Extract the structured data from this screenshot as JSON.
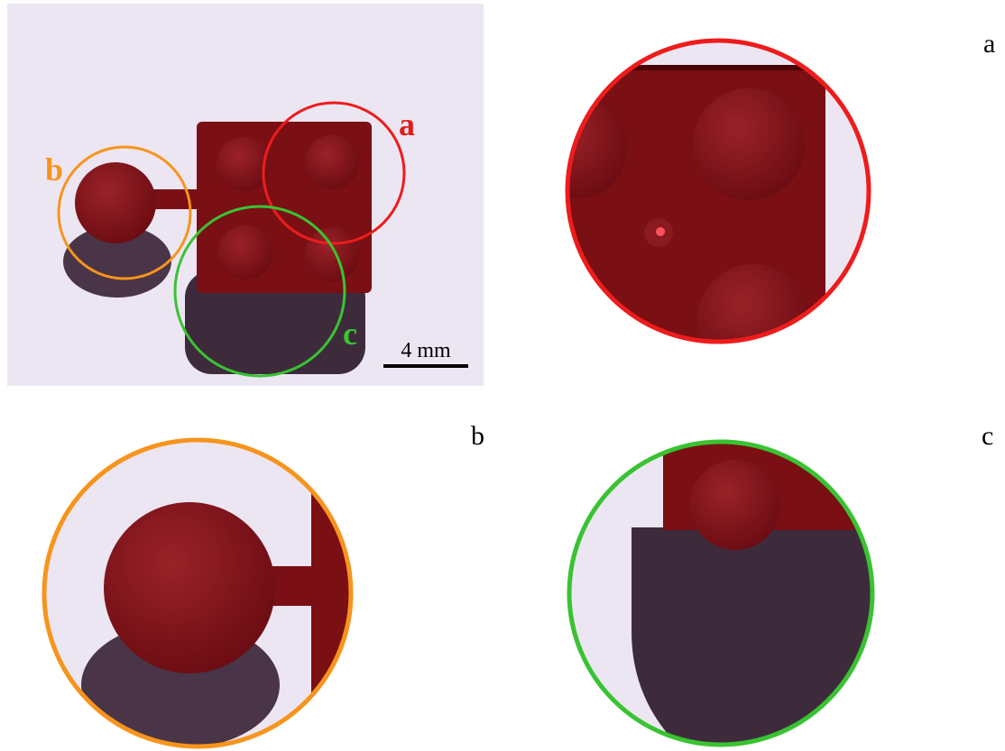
{
  "photo": {
    "labels": [
      "a",
      "b",
      "c"
    ],
    "scale_bar": "4 mm"
  },
  "panels": [
    {
      "label": "a"
    },
    {
      "label": "b"
    },
    {
      "label": "c"
    }
  ]
}
